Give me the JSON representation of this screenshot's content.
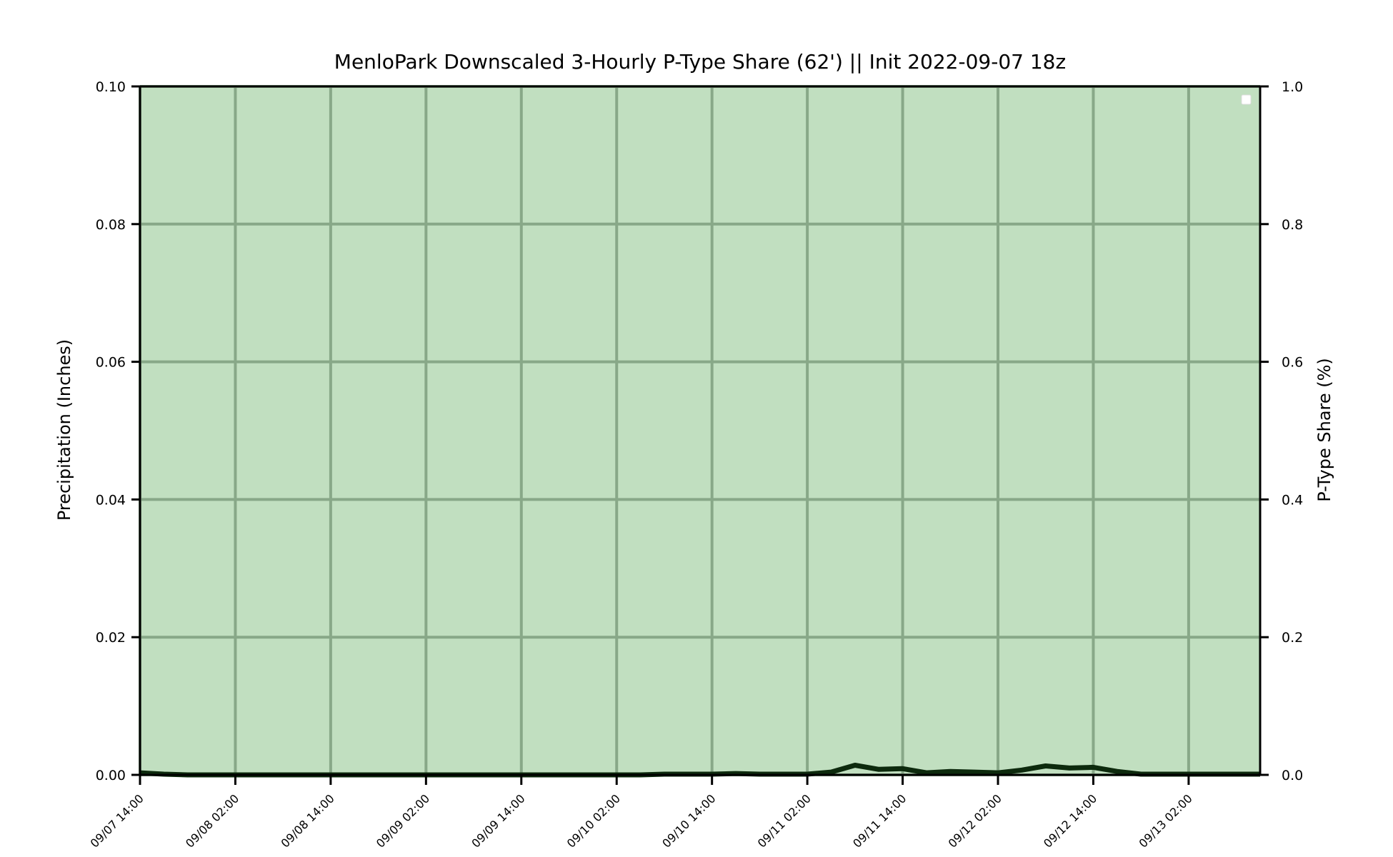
{
  "chart_data": {
    "type": "area",
    "title": "MenloPark Downscaled 3-Hourly P-Type Share (62') || Init 2022-09-07 18z",
    "ylabel": "Precipitation (Inches)",
    "y2label": "P-Type Share (%)",
    "ylim": [
      0,
      0.1
    ],
    "y2lim": [
      0,
      1.0
    ],
    "y_ticks": [
      "0.00",
      "0.02",
      "0.04",
      "0.06",
      "0.08",
      "0.10"
    ],
    "y2_ticks": [
      "0.0",
      "0.2",
      "0.4",
      "0.6",
      "0.8",
      "1.0"
    ],
    "x_ticks": [
      "09/07 14:00",
      "09/08 02:00",
      "09/08 14:00",
      "09/09 02:00",
      "09/09 14:00",
      "09/10 02:00",
      "09/10 14:00",
      "09/11 02:00",
      "09/11 14:00",
      "09/12 02:00",
      "09/12 14:00",
      "09/13 02:00"
    ],
    "x_hours": [
      0,
      3,
      6,
      9,
      12,
      15,
      18,
      21,
      24,
      27,
      30,
      33,
      36,
      39,
      42,
      45,
      48,
      51,
      54,
      57,
      60,
      63,
      66,
      69,
      72,
      75,
      78,
      81,
      84,
      87,
      90,
      93,
      96,
      99,
      102,
      105,
      108,
      111,
      114,
      117,
      120,
      123,
      126,
      129,
      132,
      135,
      138,
      141
    ],
    "series": [
      {
        "values": [
          0.0003,
          0.0001,
          0,
          0,
          0,
          0,
          0,
          0,
          0,
          0,
          0,
          0,
          0,
          0,
          0,
          0,
          0,
          0,
          0,
          0,
          0,
          0,
          0.0001,
          0.0001,
          0.0001,
          0.0002,
          0.0001,
          0.0001,
          0.0001,
          0.0004,
          0.0014,
          0.0008,
          0.0009,
          0.0003,
          0.0005,
          0.0004,
          0.0003,
          0.0007,
          0.0013,
          0.001,
          0.0011,
          0.0005,
          0.0001,
          0.0001,
          0.0001,
          0.0001,
          0.0001,
          0.0001
        ]
      }
    ],
    "ptype_share_fill": 1.0,
    "legend": "top-right",
    "grid": true,
    "colors": {
      "fill": "#c1dfc0",
      "grid": "#88a888",
      "line": "#0d2a0d",
      "top_edge": "#4caf30"
    }
  }
}
